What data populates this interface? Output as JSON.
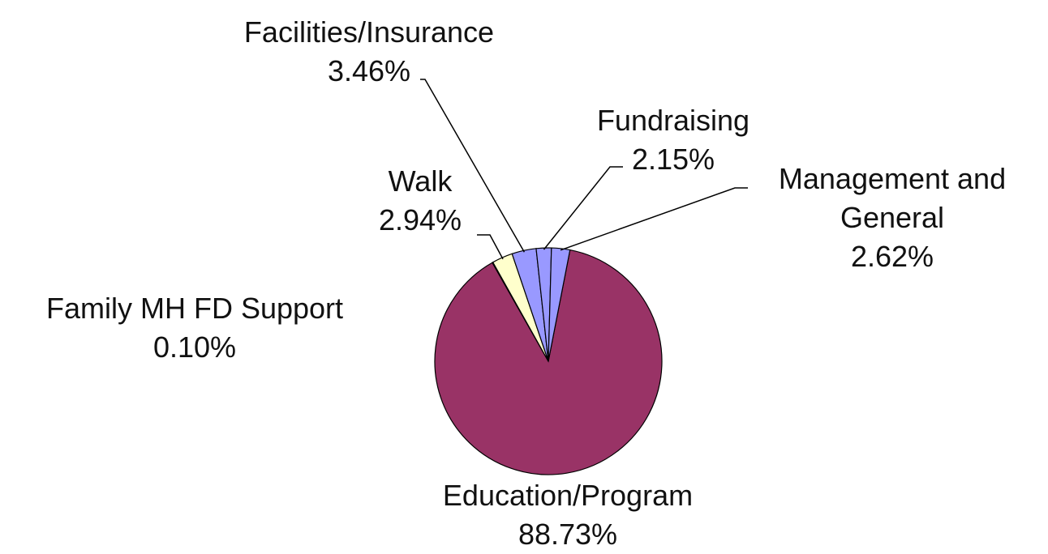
{
  "chart_data": {
    "type": "pie",
    "categories": [
      "Education/Program",
      "Family MH FD Support",
      "Walk",
      "Facilities/Insurance",
      "Fundraising",
      "Management and General"
    ],
    "values": [
      88.73,
      0.1,
      2.94,
      3.46,
      2.15,
      2.62
    ],
    "value_labels": [
      "88.73%",
      "0.10%",
      "2.94%",
      "3.46%",
      "2.15%",
      "2.62%"
    ],
    "colors": [
      "#993366",
      "#ccffff",
      "#ffffcc",
      "#9999ff",
      "#9999ff",
      "#9999ff"
    ]
  }
}
